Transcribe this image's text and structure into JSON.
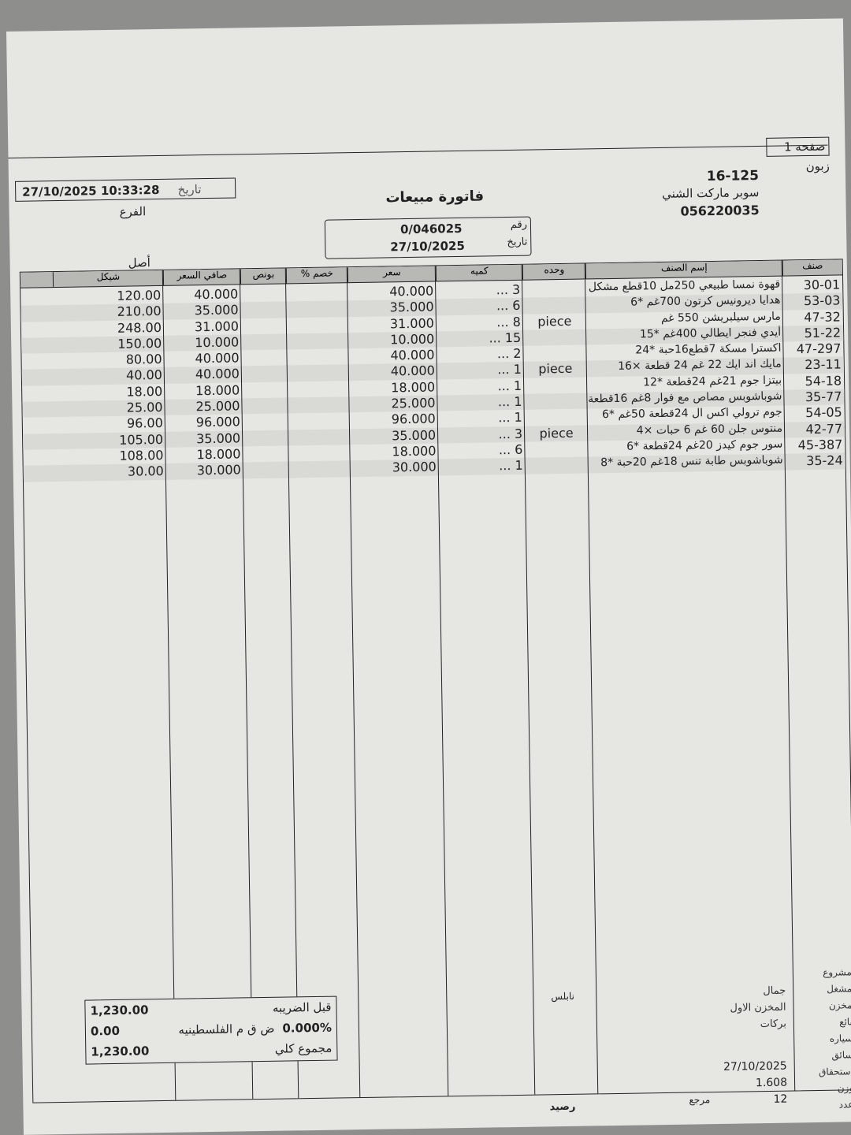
{
  "page": {
    "label": "صفحه",
    "number": "1"
  },
  "customer": {
    "label": "زبون",
    "code": "16-125",
    "name": "سوبر ماركت الشني",
    "phone": "056220035"
  },
  "header": {
    "date_label": "تاريخ",
    "datetime": "27/10/2025 10:33:28",
    "branch_label": "الفرع",
    "title": "فاتورة مبيعات",
    "number_label": "رقم",
    "number": "0/046025",
    "date2_label": "تاريخ",
    "date": "27/10/2025",
    "original": "أصل"
  },
  "columns": [
    "صنف",
    "إسم الصنف",
    "وحده",
    "كميه",
    "سعر",
    "خصم %",
    "بونص",
    "صافي السعر",
    "شيكل"
  ],
  "items": [
    {
      "code": "30-01",
      "name": "قهوة نمسا طبيعي 250مل 10قطع مشكل",
      "unit": "",
      "qty": "3 ...",
      "price": "40.000",
      "net": "40.000",
      "total": "120.00"
    },
    {
      "code": "53-03",
      "name": "هدايا ديرونيس كرتون 700غم *6",
      "unit": "",
      "qty": "6 ...",
      "price": "35.000",
      "net": "35.000",
      "total": "210.00"
    },
    {
      "code": "47-32",
      "name": "مارس سيلبريشن 550 غم",
      "unit": "piece",
      "qty": "8 ...",
      "price": "31.000",
      "net": "31.000",
      "total": "248.00"
    },
    {
      "code": "51-22",
      "name": "أيدي فنجر ايطالي 400غم *15",
      "unit": "",
      "qty": "15 ...",
      "price": "10.000",
      "net": "10.000",
      "total": "150.00"
    },
    {
      "code": "47-297",
      "name": "اكسترا مسكة 7قطع16حبة *24",
      "unit": "",
      "qty": "2 ...",
      "price": "40.000",
      "net": "40.000",
      "total": "80.00"
    },
    {
      "code": "23-11",
      "name": "مايك اند ايك 22 غم 24 قطعة ×16",
      "unit": "piece",
      "qty": "1 ...",
      "price": "40.000",
      "net": "40.000",
      "total": "40.00"
    },
    {
      "code": "54-18",
      "name": "بيتزا جوم 21غم 24قطعة *12",
      "unit": "",
      "qty": "1 ...",
      "price": "18.000",
      "net": "18.000",
      "total": "18.00"
    },
    {
      "code": "35-77",
      "name": "شوباشوبس مصاص مع فوار 8غم 16قطعة",
      "unit": "",
      "qty": "1 ...",
      "price": "25.000",
      "net": "25.000",
      "total": "25.00"
    },
    {
      "code": "54-05",
      "name": "جوم ترولي اكس ال 24قطعة 50غم *6",
      "unit": "",
      "qty": "1 ...",
      "price": "96.000",
      "net": "96.000",
      "total": "96.00"
    },
    {
      "code": "42-77",
      "name": "منتوس جلن 60 غم 6 حبات ×4",
      "unit": "piece",
      "qty": "3 ...",
      "price": "35.000",
      "net": "35.000",
      "total": "105.00"
    },
    {
      "code": "45-387",
      "name": "سور جوم كيدز 20غم 24قطعة *6",
      "unit": "",
      "qty": "6 ...",
      "price": "18.000",
      "net": "18.000",
      "total": "108.00"
    },
    {
      "code": "35-24",
      "name": "شوباشوبس طابة تنس 18غم 20حبة *8",
      "unit": "",
      "qty": "1 ...",
      "price": "30.000",
      "net": "30.000",
      "total": "30.00"
    }
  ],
  "totals": {
    "before_tax_label": "قبل الضريبه",
    "before_tax": "1,230.00",
    "vat_label": "ض ق م الفلسطينيه",
    "vat_rate": "0.000%",
    "vat": "0.00",
    "grand_label": "مجموع كلي",
    "grand": "1,230.00"
  },
  "footer": {
    "labels": [
      "مشروع",
      "مشغل",
      "مخزن",
      "بائع",
      "سياره",
      "سائق",
      "إستحقاق",
      "وزن",
      "عدد"
    ],
    "operator": "جمال",
    "store": "المخزن الاول",
    "seller": "بركات",
    "due": "27/10/2025",
    "weight": "1.608",
    "count": "12",
    "city": "نابلس",
    "ref_label": "مرجع",
    "balance_label": "رصيد"
  }
}
